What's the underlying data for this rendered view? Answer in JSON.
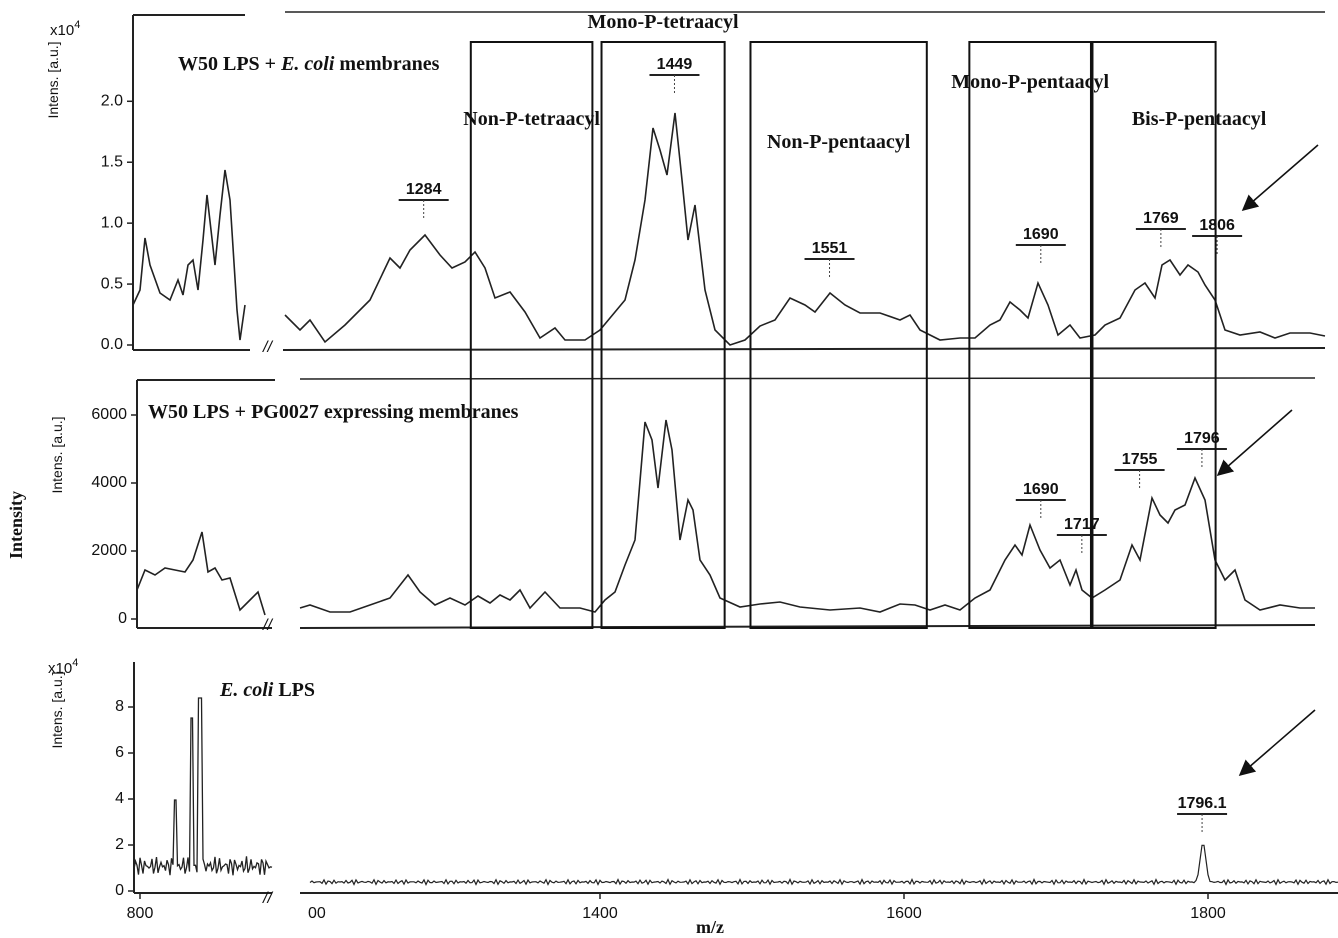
{
  "chart_data": [
    {
      "type": "line",
      "title": [
        "W50 LPS + ",
        "E. coli",
        " membranes"
      ],
      "ylabel": "Intens. [a.u.]",
      "yscale_label": {
        "base": "x10",
        "exponent": "4"
      },
      "ylim": [
        0,
        2.7
      ],
      "yticks": [
        {
          "value": 0,
          "label": "0.0"
        },
        {
          "value": 0.5,
          "label": "0.5"
        },
        {
          "value": 1,
          "label": "1.0"
        },
        {
          "value": 1.5,
          "label": "1.5"
        },
        {
          "value": 2,
          "label": "2.0"
        }
      ],
      "peak_labels": [
        1284,
        1449,
        1551,
        1690,
        1769,
        1806
      ]
    },
    {
      "type": "line",
      "title": [
        "W50 LPS + PG0027 expressing membranes"
      ],
      "ylabel": "Intens. [a.u.]",
      "ylim": [
        0,
        7000
      ],
      "yticks": [
        0,
        2000,
        4000,
        6000
      ],
      "peak_labels": [
        1690,
        1717,
        1755,
        1796
      ]
    },
    {
      "type": "line",
      "title": [
        "E. coli",
        " LPS"
      ],
      "ylabel": "Intens. [a.u.]",
      "yscale_label": {
        "base": "x10",
        "exponent": "4"
      },
      "ylim": [
        0,
        10
      ],
      "yticks": [
        0,
        2,
        4,
        6,
        8
      ],
      "peak_labels": [
        1796.1
      ]
    }
  ],
  "regions": [
    {
      "label": "Non-P-tetraacyl",
      "range": [
        1315,
        1395
      ]
    },
    {
      "label": "Mono-P-tetraacyl",
      "range": [
        1401,
        1482
      ]
    },
    {
      "label": "Non-P-pentaacyl",
      "range": [
        1499,
        1615
      ]
    },
    {
      "label": "Mono-P-pentaacyl",
      "range": [
        1643,
        1723
      ]
    },
    {
      "label": "Bis-P-pentaacyl",
      "range": [
        1724,
        1805
      ]
    }
  ],
  "xlabel": "m/z",
  "ylabel": "Intensity",
  "break_label": "//",
  "inset_xticks": [
    800
  ],
  "xticks": [
    {
      "value": 1200,
      "label": "00"
    },
    1400,
    1600,
    1800
  ]
}
